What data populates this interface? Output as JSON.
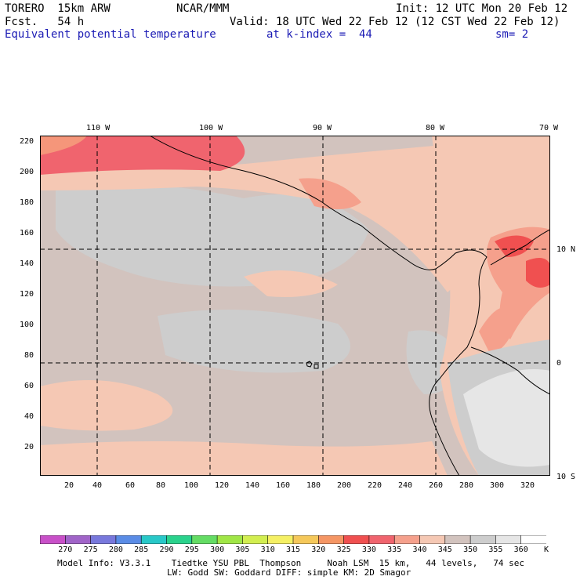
{
  "header": {
    "model": "TORERO  15km ARW",
    "org": "NCAR/MMM",
    "init": "Init: 12 UTC Mon 20 Feb 12",
    "fcst": "Fcst.   54 h",
    "valid": "Valid: 18 UTC Wed 22 Feb 12 (12 CST Wed 22 Feb 12)",
    "field": "Equivalent potential temperature",
    "level": "at k-index =  44",
    "smooth": "sm= 2"
  },
  "map": {
    "lon_labels": [
      "110 W",
      "100 W",
      "90 W",
      "80 W",
      "70 W"
    ],
    "lat_labels": [
      "10 N",
      "0",
      "10 S"
    ],
    "y_ticks": [
      "220",
      "200",
      "180",
      "160",
      "140",
      "120",
      "100",
      "80",
      "60",
      "40",
      "20"
    ],
    "x_ticks": [
      "20",
      "40",
      "60",
      "80",
      "100",
      "120",
      "140",
      "160",
      "180",
      "200",
      "220",
      "240",
      "260",
      "280",
      "300",
      "320"
    ]
  },
  "colorbar": {
    "labels": [
      "270",
      "275",
      "280",
      "285",
      "290",
      "295",
      "300",
      "305",
      "310",
      "315",
      "320",
      "325",
      "330",
      "335",
      "340",
      "345",
      "350",
      "355",
      "360",
      "K"
    ],
    "colors": [
      "#c850c8",
      "#a064c8",
      "#7878dc",
      "#5a8ce6",
      "#28c8c8",
      "#2ad28c",
      "#64dc64",
      "#a0e646",
      "#d2ee50",
      "#f5f064",
      "#f5c85a",
      "#f59664",
      "#f05050",
      "#f0646e",
      "#f5a08c",
      "#f5c8b4",
      "#d2c3be",
      "#cdcdcd",
      "#e6e6e6",
      "#ffffff"
    ]
  },
  "footer": {
    "line1": "Model Info: V3.3.1    Tiedtke YSU PBL  Thompson     Noah LSM  15 km,   44 levels,   74 sec",
    "line2": "LW: Godd SW: Goddard DIFF: simple KM: 2D Smagor"
  }
}
